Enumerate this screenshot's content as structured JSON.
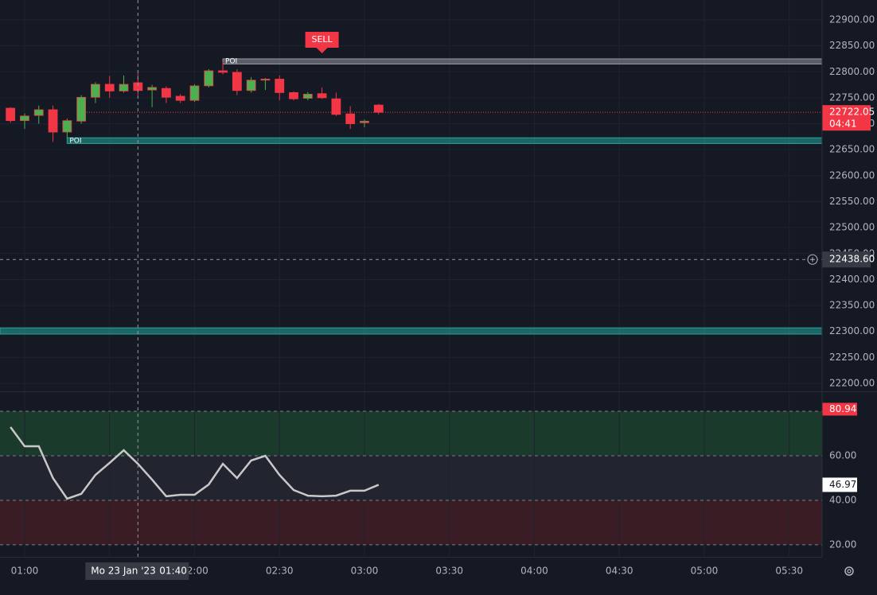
{
  "chart_data": [
    {
      "type": "candlestick",
      "x": [
        55,
        60,
        65,
        70,
        75,
        80,
        85,
        90,
        95,
        100,
        105,
        110,
        115,
        120,
        125,
        130,
        135,
        140,
        145,
        150,
        155,
        160,
        165,
        170,
        175,
        180,
        185
      ],
      "open": [
        22730,
        22706,
        22716,
        22727,
        22684,
        22705,
        22751,
        22776,
        22763,
        22779,
        22765,
        22768,
        22753,
        22745,
        22773,
        22802,
        22799,
        22764,
        22784,
        22786,
        22760,
        22749,
        22758,
        22748,
        22719,
        22702,
        22736
      ],
      "high": [
        22732,
        22720,
        22735,
        22735,
        22710,
        22755,
        22780,
        22792,
        22793,
        22797,
        22775,
        22772,
        22757,
        22776,
        22805,
        22820,
        22805,
        22790,
        22788,
        22793,
        22762,
        22761,
        22770,
        22760,
        22734,
        22708,
        22738
      ],
      "low": [
        22702,
        22690,
        22700,
        22665,
        22672,
        22700,
        22740,
        22750,
        22760,
        22755,
        22732,
        22740,
        22740,
        22742,
        22770,
        22795,
        22755,
        22760,
        22765,
        22745,
        22745,
        22745,
        22748,
        22715,
        22690,
        22693,
        22718
      ],
      "close": [
        22706,
        22715,
        22727,
        22684,
        22706,
        22751,
        22776,
        22763,
        22776,
        22764,
        22770,
        22751,
        22745,
        22773,
        22802,
        22799,
        22764,
        22784,
        22786,
        22760,
        22748,
        22757,
        22750,
        22718,
        22700,
        22705,
        22722.05
      ],
      "up_color": "#4caf50",
      "down_color": "#f23645",
      "xlim": [
        51.3,
        341.6
      ],
      "ylim": [
        22184.7,
        22938.3
      ],
      "yticks": [
        {
          "value": 22200,
          "label": "22200.00"
        },
        {
          "value": 22250,
          "label": "22250.00"
        },
        {
          "value": 22300,
          "label": "22300.00"
        },
        {
          "value": 22350,
          "label": "22350.00"
        },
        {
          "value": 22400,
          "label": "22400.00"
        },
        {
          "value": 22450,
          "label": "22450.00"
        },
        {
          "value": 22500,
          "label": "22500.00"
        },
        {
          "value": 22550,
          "label": "22550.00"
        },
        {
          "value": 22600,
          "label": "22600.00"
        },
        {
          "value": 22650,
          "label": "22650.00"
        },
        {
          "value": 22700,
          "label": "22700.00"
        },
        {
          "value": 22750,
          "label": "22750.00"
        },
        {
          "value": 22800,
          "label": "22800.00"
        },
        {
          "value": 22850,
          "label": "22850.00"
        },
        {
          "value": 22900,
          "label": "22900.00"
        }
      ],
      "countdown": "04:41",
      "zones": [
        {
          "label": "POI",
          "range": [
            22815,
            22825
          ],
          "start": 130,
          "color": "#9598a1"
        },
        {
          "label": "POI",
          "range": [
            22662,
            22673
          ],
          "start": 75,
          "color": "#26a69a"
        },
        {
          "range": [
            22295,
            22307
          ],
          "color": "#26a69a"
        }
      ],
      "markers": [
        {
          "label": "SELL",
          "x": 165,
          "price": 22831,
          "color": "#f23645"
        }
      ],
      "crosshair": {
        "x": 100,
        "price": {
          "value": 22438.6,
          "label": "22438.60"
        },
        "date": "Mo 23 Jan '23",
        "time": "01:40"
      }
    },
    {
      "type": "line",
      "x": [
        55,
        60,
        65,
        70,
        75,
        80,
        85,
        90,
        95,
        100,
        105,
        110,
        115,
        120,
        125,
        130,
        135,
        140,
        145,
        150,
        155,
        160,
        165,
        170,
        175,
        180,
        185
      ],
      "series": [
        {
          "color": "#c8c8c8",
          "values": [
            72.9,
            64.3,
            64.3,
            50,
            40.7,
            42.9,
            51.4,
            56.8,
            62.5,
            56.4,
            49.3,
            41.8,
            42.5,
            42.5,
            47.1,
            56.4,
            50,
            57.9,
            60,
            51.4,
            44.6,
            42.1,
            41.8,
            42.1,
            44.3,
            44.3,
            46.97
          ]
        }
      ],
      "xlim": [
        51.3,
        341.6
      ],
      "ylim": [
        14.6,
        88.6
      ],
      "yticks": [
        {
          "value": 20,
          "label": "20.00"
        },
        {
          "value": 40,
          "label": "40.00"
        },
        {
          "value": 60,
          "label": "60.00"
        },
        {
          "value": 80,
          "label": "80.00"
        }
      ],
      "levels": [
        20,
        40,
        60,
        80
      ],
      "bands": [
        {
          "range": [
            60,
            80
          ],
          "color": "#1a3a2c"
        },
        {
          "range": [
            40,
            60
          ],
          "color": "#22252f"
        },
        {
          "range": [
            20,
            40
          ],
          "color": "#3a1c24"
        }
      ],
      "upper_value": {
        "value": 80.94,
        "color": "#f23645"
      },
      "xticks": [
        {
          "value": 60,
          "label": "01:00"
        },
        {
          "value": 90,
          "label": "01:30"
        },
        {
          "value": 120,
          "label": "02:00"
        },
        {
          "value": 150,
          "label": "02:30"
        },
        {
          "value": 180,
          "label": "03:00"
        },
        {
          "value": 210,
          "label": "03:30"
        },
        {
          "value": 240,
          "label": "04:00"
        },
        {
          "value": 270,
          "label": "04:30"
        },
        {
          "value": 300,
          "label": "05:00"
        },
        {
          "value": 330,
          "label": "05:30"
        }
      ]
    }
  ]
}
